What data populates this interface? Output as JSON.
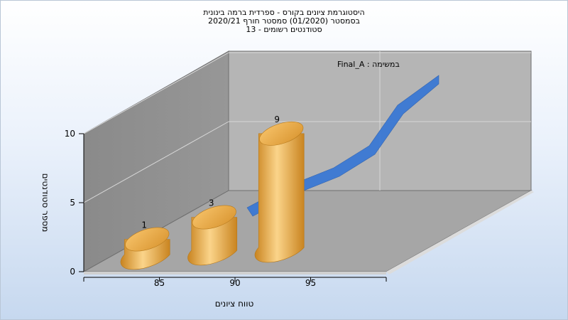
{
  "chart_data": {
    "type": "bar",
    "title_lines": [
      "היסטוגרמת ציונים בקורס - ספרדית ברמה בינונית",
      "בסמסטר  (01/2020)  סמסטר חורף 2020/21",
      "סטודנטים רשומים - 13"
    ],
    "subtitle": "במשימה : Final_A",
    "xlabel": "טווח ציונים",
    "ylabel": "מספר סטודנטים",
    "x_tick_labels": [
      "85",
      "90",
      "95"
    ],
    "y_tick_labels": [
      "0",
      "5",
      "10"
    ],
    "ylim": [
      0,
      10
    ],
    "categories": [
      "85",
      "90",
      "95"
    ],
    "values": [
      1,
      3,
      9
    ],
    "data_labels": [
      "1",
      "3",
      "9"
    ],
    "trend_line": [
      1,
      3,
      9
    ],
    "grid": true,
    "legend": "none",
    "colors": {
      "bar": "#e8a640",
      "bar_light": "#fbd48a",
      "bar_dark": "#c98420",
      "trend": "#3a78d4",
      "back_wall": "#b5b5b5",
      "side_wall": "#8f8f8f",
      "floor": "#a6a6a6"
    }
  }
}
